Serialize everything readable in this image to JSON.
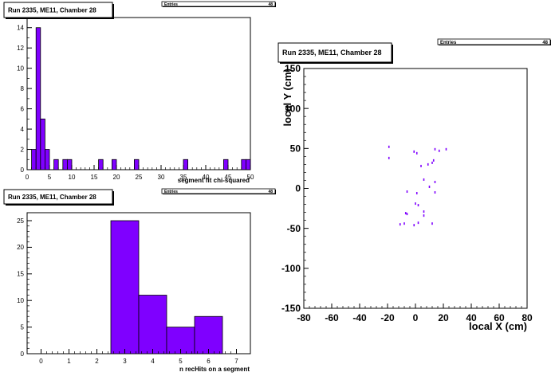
{
  "colors": {
    "fill": "#7f00ff",
    "stroke": "#000000",
    "background": "#ffffff"
  },
  "chart_data": [
    {
      "type": "bar",
      "title": "Run 2335, ME11, Chamber 28",
      "stats_label": "Entries",
      "stats_value": "48",
      "xlabel": "segment fit chi-squared",
      "ylabel": "",
      "xlim": [
        0,
        50
      ],
      "ylim": [
        0,
        15
      ],
      "xticks": [
        0,
        5,
        10,
        15,
        20,
        25,
        30,
        35,
        40,
        45,
        50
      ],
      "yticks": [
        0,
        2,
        4,
        6,
        8,
        10,
        12,
        14
      ],
      "bins": [
        {
          "x0": 1,
          "x1": 2,
          "value": 2
        },
        {
          "x0": 2,
          "x1": 3,
          "value": 14
        },
        {
          "x0": 3,
          "x1": 4,
          "value": 5
        },
        {
          "x0": 4,
          "x1": 5,
          "value": 2
        },
        {
          "x0": 6,
          "x1": 7,
          "value": 1
        },
        {
          "x0": 8,
          "x1": 9,
          "value": 1
        },
        {
          "x0": 9,
          "x1": 10,
          "value": 1
        },
        {
          "x0": 16,
          "x1": 17,
          "value": 1
        },
        {
          "x0": 19,
          "x1": 20,
          "value": 1
        },
        {
          "x0": 24,
          "x1": 25,
          "value": 1
        },
        {
          "x0": 35,
          "x1": 36,
          "value": 1
        },
        {
          "x0": 44,
          "x1": 45,
          "value": 1
        },
        {
          "x0": 48,
          "x1": 49,
          "value": 1
        },
        {
          "x0": 49,
          "x1": 50,
          "value": 1
        }
      ]
    },
    {
      "type": "bar",
      "title": "Run 2335, ME11, Chamber 28",
      "stats_label": "Entries",
      "stats_value": "48",
      "xlabel": "n recHits on a segment",
      "ylabel": "",
      "xlim": [
        -0.5,
        7.5
      ],
      "ylim": [
        0,
        26.5
      ],
      "xticks": [
        0,
        1,
        2,
        3,
        4,
        5,
        6,
        7
      ],
      "yticks": [
        0,
        5,
        10,
        15,
        20,
        25
      ],
      "bins": [
        {
          "x0": 2.5,
          "x1": 3.5,
          "value": 25
        },
        {
          "x0": 3.5,
          "x1": 4.5,
          "value": 11
        },
        {
          "x0": 4.5,
          "x1": 5.5,
          "value": 5
        },
        {
          "x0": 5.5,
          "x1": 6.5,
          "value": 7
        }
      ]
    },
    {
      "type": "scatter",
      "title": "Run 2335, ME11, Chamber 28",
      "stats_label": "Entries",
      "stats_value": "48",
      "xlabel": "local X (cm)",
      "ylabel": "local Y (cm)",
      "xlim": [
        -80,
        80
      ],
      "ylim": [
        -150,
        150
      ],
      "xticks": [
        -80,
        -60,
        -40,
        -20,
        0,
        20,
        40,
        60,
        80
      ],
      "yticks": [
        -150,
        -100,
        -50,
        0,
        50,
        100,
        150
      ],
      "points": [
        {
          "x": -19,
          "y": 52
        },
        {
          "x": -19,
          "y": 38
        },
        {
          "x": -1,
          "y": 46
        },
        {
          "x": 1,
          "y": 44
        },
        {
          "x": 4,
          "y": 28
        },
        {
          "x": 9,
          "y": 30
        },
        {
          "x": 12,
          "y": 32
        },
        {
          "x": 13,
          "y": 35
        },
        {
          "x": 14,
          "y": 49
        },
        {
          "x": 17,
          "y": 47
        },
        {
          "x": 22,
          "y": 49
        },
        {
          "x": 6,
          "y": 11
        },
        {
          "x": 14,
          "y": 8
        },
        {
          "x": 10,
          "y": 2
        },
        {
          "x": -6,
          "y": -4
        },
        {
          "x": 1,
          "y": -6
        },
        {
          "x": 14,
          "y": -5
        },
        {
          "x": 0,
          "y": -19
        },
        {
          "x": 2,
          "y": -21
        },
        {
          "x": -7,
          "y": -31
        },
        {
          "x": -6,
          "y": -32
        },
        {
          "x": 6,
          "y": -29
        },
        {
          "x": 6,
          "y": -34
        },
        {
          "x": -11,
          "y": -45
        },
        {
          "x": -8,
          "y": -44
        },
        {
          "x": -1,
          "y": -46
        },
        {
          "x": 2,
          "y": -43
        },
        {
          "x": 12,
          "y": -44
        }
      ]
    }
  ]
}
